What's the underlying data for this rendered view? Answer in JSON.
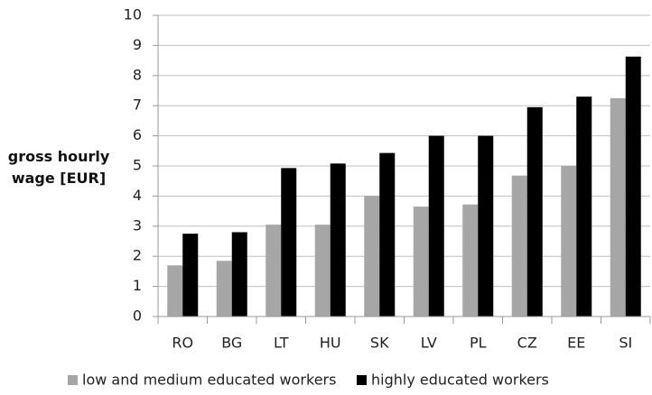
{
  "chart_data": {
    "type": "bar",
    "y_label": "gross hourly wage [EUR]",
    "categories": [
      "RO",
      "BG",
      "LT",
      "HU",
      "SK",
      "LV",
      "PL",
      "CZ",
      "EE",
      "SI"
    ],
    "series": [
      {
        "name": "low and medium educated workers",
        "color": "#a6a6a6",
        "values": [
          1.7,
          1.85,
          3.05,
          3.05,
          4.0,
          3.65,
          3.72,
          4.68,
          5.0,
          7.25
        ]
      },
      {
        "name": "highly educated workers",
        "color": "#000000",
        "values": [
          2.75,
          2.8,
          4.93,
          5.08,
          5.43,
          6.0,
          6.0,
          6.95,
          7.3,
          8.63
        ]
      }
    ],
    "ylim": [
      0,
      10
    ],
    "yticks": [
      0,
      1,
      2,
      3,
      4,
      5,
      6,
      7,
      8,
      9,
      10
    ],
    "grid": true
  }
}
